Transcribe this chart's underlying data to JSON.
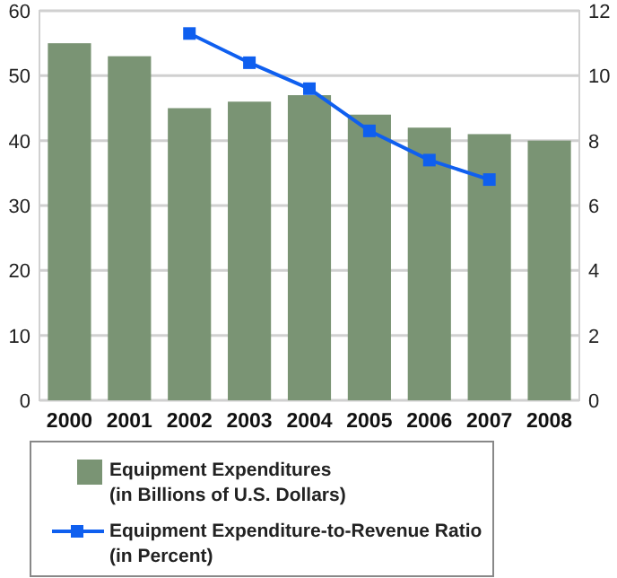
{
  "chart_data": {
    "type": "bar",
    "categories": [
      "2000",
      "2001",
      "2002",
      "2003",
      "2004",
      "2005",
      "2006",
      "2007",
      "2008"
    ],
    "series": [
      {
        "name": "Equipment Expenditures\n(in Billions of U.S. Dollars)",
        "color": "#7a9474",
        "values": [
          55,
          53,
          45,
          46,
          47,
          44,
          42,
          41,
          40
        ]
      },
      {
        "name": "Equipment Expenditure-to-Revenue Ratio\n(in Percent)",
        "type": "line",
        "axis": "y2",
        "color": "#0f5fef",
        "values": [
          null,
          null,
          11.3,
          10.4,
          9.6,
          8.3,
          7.4,
          6.8,
          null
        ]
      }
    ],
    "ylim": [
      0,
      60
    ],
    "yticks": [
      0,
      10,
      20,
      30,
      40,
      50,
      60
    ],
    "y2lim": [
      0,
      12
    ],
    "y2ticks": [
      0,
      2,
      4,
      6,
      8,
      10,
      12
    ],
    "grid": "y",
    "legend": "bottom",
    "marker": "square",
    "line_style": "solid"
  }
}
